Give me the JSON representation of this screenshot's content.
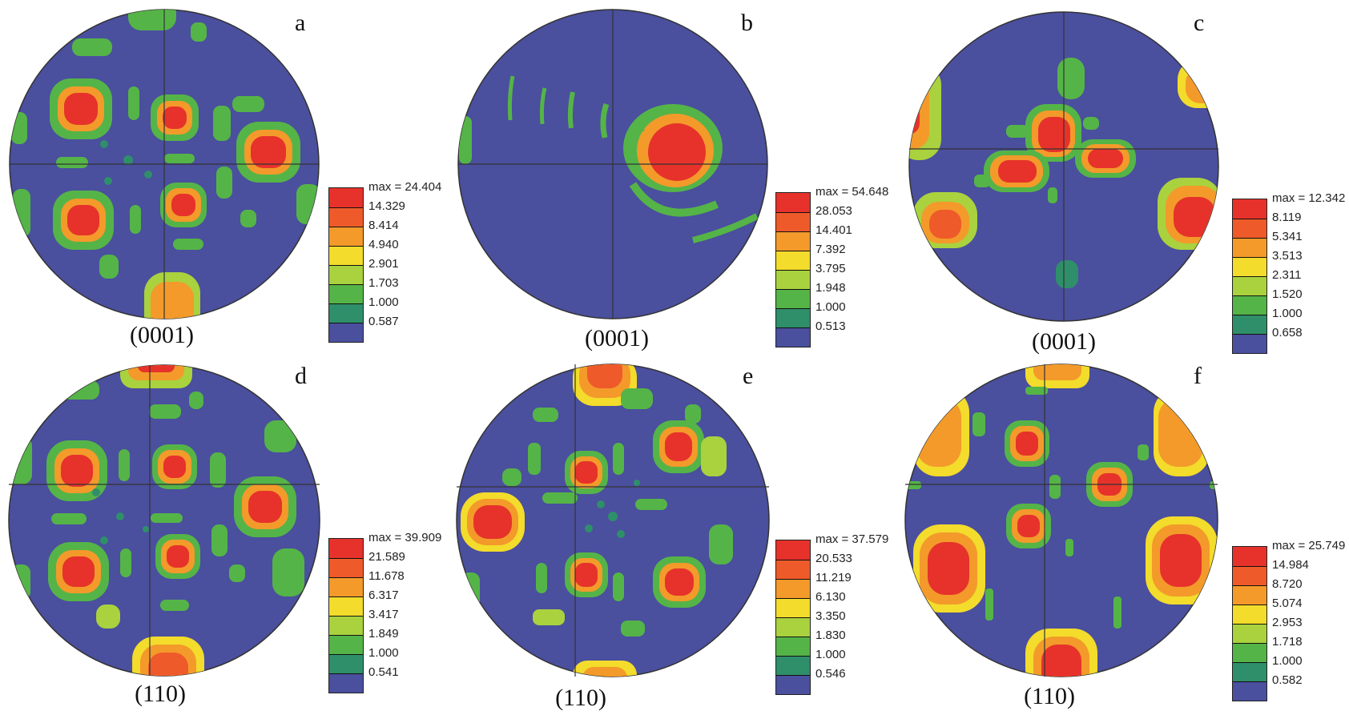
{
  "colors": {
    "background": "#4a4f9e",
    "levels": [
      "#4a4f9e",
      "#2f8f6a",
      "#55b447",
      "#a9d23e",
      "#f3dc2b",
      "#f39a2b",
      "#ef5a2a",
      "#e6322b"
    ]
  },
  "panels": [
    {
      "letter": "a",
      "plane": "(0001)",
      "legend": {
        "max": "max = 24.404",
        "levels": [
          "14.329",
          "8.414",
          "4.940",
          "2.901",
          "1.703",
          "1.000",
          "0.587"
        ]
      }
    },
    {
      "letter": "b",
      "plane": "(0001)",
      "legend": {
        "max": "max = 54.648",
        "levels": [
          "28.053",
          "14.401",
          "7.392",
          "3.795",
          "1.948",
          "1.000",
          "0.513"
        ]
      }
    },
    {
      "letter": "c",
      "plane": "(0001)",
      "legend": {
        "max": "max = 12.342",
        "levels": [
          "8.119",
          "5.341",
          "3.513",
          "2.311",
          "1.520",
          "1.000",
          "0.658"
        ]
      }
    },
    {
      "letter": "d",
      "plane": "(110)",
      "legend": {
        "max": "max = 39.909",
        "levels": [
          "21.589",
          "11.678",
          "6.317",
          "3.417",
          "1.849",
          "1.000",
          "0.541"
        ]
      }
    },
    {
      "letter": "e",
      "plane": "(110)",
      "legend": {
        "max": "max = 37.579",
        "levels": [
          "20.533",
          "11.219",
          "6.130",
          "3.350",
          "1.830",
          "1.000",
          "0.546"
        ]
      }
    },
    {
      "letter": "f",
      "plane": "(110)",
      "legend": {
        "max": "max = 25.749",
        "levels": [
          "14.984",
          "8.720",
          "5.074",
          "2.953",
          "1.718",
          "1.000",
          "0.582"
        ]
      }
    }
  ]
}
